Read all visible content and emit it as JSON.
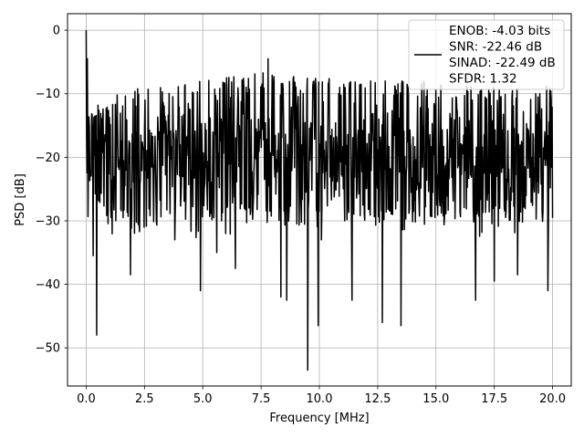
{
  "chart_data": {
    "type": "line",
    "title": "",
    "xlabel": "Frequency [MHz]",
    "ylabel": "PSD [dB]",
    "xlim": [
      -0.8,
      20.8
    ],
    "ylim": [
      -56,
      2.6
    ],
    "xticks": [
      0.0,
      2.5,
      5.0,
      7.5,
      10.0,
      12.5,
      15.0,
      17.5,
      20.0
    ],
    "xtick_labels": [
      "0.0",
      "2.5",
      "5.0",
      "7.5",
      "10.0",
      "12.5",
      "15.0",
      "17.5",
      "20.0"
    ],
    "yticks": [
      0,
      -10,
      -20,
      -30,
      -40,
      -50
    ],
    "ytick_labels": [
      "0",
      "−10",
      "−20",
      "−30",
      "−40",
      "−50"
    ],
    "grid": true,
    "legend_position": "top-right",
    "series": [
      {
        "name": "ENOB: -4.03 bits\nSNR: -22.46 dB\nSINAD: -22.49 dB\nSFDR: 1.32",
        "legend_lines": [
          "ENOB: -4.03 bits",
          "SNR: -22.46 dB",
          "SINAD: -22.49 dB",
          "SFDR: 1.32"
        ],
        "color": "#000000",
        "description": "noise-like PSD spanning 0-20 MHz, mostly between -30 and -10 dB",
        "x_range": [
          0.0,
          20.0
        ],
        "num_points": 1024,
        "upper_envelope": [
          -11.5,
          -9.2,
          -8.0,
          -7.2,
          -6.5,
          -7.5,
          -8.0,
          -8.0,
          -8.5,
          -8.8,
          -8.5
        ],
        "lower_envelope": [
          -30,
          -31,
          -31,
          -30,
          -31,
          -31,
          -31,
          -31,
          -30,
          -31,
          -30
        ],
        "center_level": -20,
        "notable_points": [
          {
            "x": 0.0,
            "y": 0.0
          },
          {
            "x": 0.05,
            "y": -4.5
          },
          {
            "x": 0.1,
            "y": -18.5
          },
          {
            "x": 0.3,
            "y": -35.5
          },
          {
            "x": 0.45,
            "y": -48.0
          },
          {
            "x": 1.9,
            "y": -38.5
          },
          {
            "x": 3.8,
            "y": -33.0
          },
          {
            "x": 4.9,
            "y": -41.0
          },
          {
            "x": 5.6,
            "y": -35.0
          },
          {
            "x": 6.4,
            "y": -37.5
          },
          {
            "x": 7.8,
            "y": -4.5
          },
          {
            "x": 8.35,
            "y": -42.0
          },
          {
            "x": 8.6,
            "y": -42.5
          },
          {
            "x": 9.5,
            "y": -53.5
          },
          {
            "x": 9.95,
            "y": -46.5
          },
          {
            "x": 11.4,
            "y": -42.5
          },
          {
            "x": 12.7,
            "y": -46.0
          },
          {
            "x": 13.5,
            "y": -46.5
          },
          {
            "x": 16.7,
            "y": -42.5
          },
          {
            "x": 17.5,
            "y": -39.5
          },
          {
            "x": 18.5,
            "y": -38.5
          },
          {
            "x": 19.8,
            "y": -41.0
          }
        ]
      }
    ]
  }
}
